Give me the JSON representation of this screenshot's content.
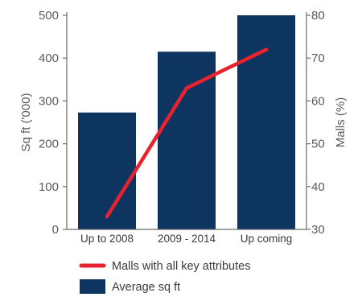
{
  "chart_data": {
    "type": "bar",
    "categories": [
      "Up to 2008",
      "2009 - 2014",
      "Up coming"
    ],
    "series": [
      {
        "name": "Average sq ft",
        "type": "bar",
        "axis": "left",
        "values": [
          273,
          415,
          500
        ]
      },
      {
        "name": "Malls with all key attributes",
        "type": "line",
        "axis": "right",
        "values": [
          33,
          63,
          72
        ]
      }
    ],
    "ylabel": "Sq ft ('000)",
    "ylim": [
      0,
      500
    ],
    "yticks": [
      0,
      100,
      200,
      300,
      400,
      500
    ],
    "y2label": "Malls (%)",
    "y2lim": [
      30,
      80
    ],
    "y2ticks": [
      30,
      40,
      50,
      60,
      70,
      80
    ],
    "grid": false,
    "legend_position": "bottom",
    "colors": {
      "bar": "#0d3560",
      "line": "#e8232f",
      "axis": "#6b6b6b",
      "text": "#5b5b5b"
    }
  }
}
